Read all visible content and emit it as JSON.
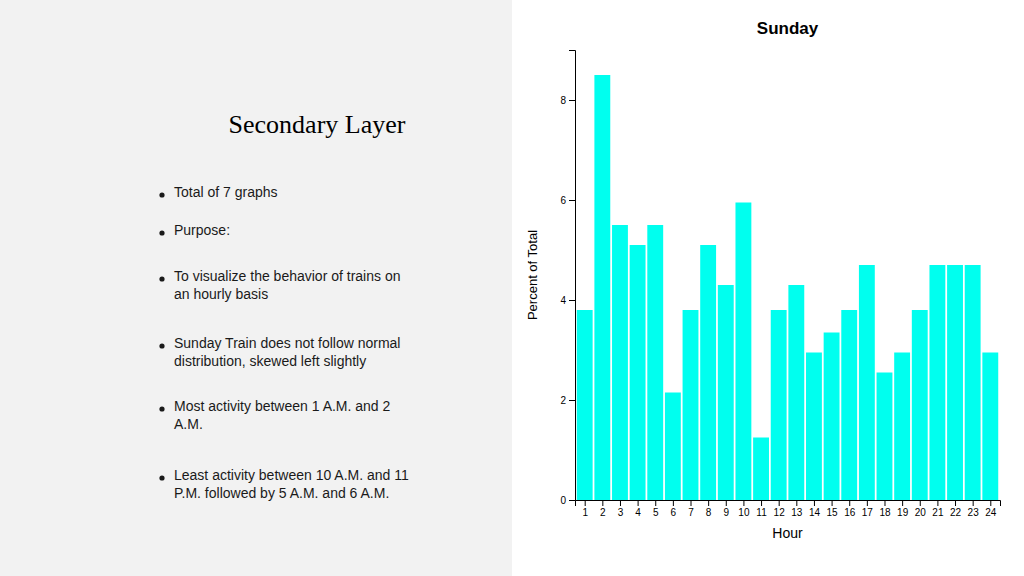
{
  "chart_data": {
    "type": "bar",
    "title": "Sunday",
    "xlabel": "Hour",
    "ylabel": "Percent of Total",
    "x": [
      1,
      2,
      3,
      4,
      5,
      6,
      7,
      8,
      9,
      10,
      11,
      12,
      13,
      14,
      15,
      16,
      17,
      18,
      19,
      20,
      21,
      22,
      23,
      24
    ],
    "values": [
      3.8,
      8.5,
      5.5,
      5.1,
      5.5,
      2.15,
      3.8,
      5.1,
      4.3,
      5.95,
      1.25,
      3.8,
      4.3,
      2.95,
      3.35,
      3.8,
      4.7,
      2.55,
      2.95,
      3.8,
      4.7,
      4.7,
      4.7,
      2.95
    ],
    "color": "#00FFEF",
    "xlim": [
      0.45,
      24.55
    ],
    "xticks": [
      1,
      2,
      3,
      4,
      5,
      6,
      7,
      8,
      9,
      10,
      11,
      12,
      13,
      14,
      15,
      16,
      17,
      18,
      19,
      20,
      21,
      22,
      23,
      24
    ],
    "ylim": [
      0,
      9
    ],
    "yticks": [
      0,
      2,
      4,
      6,
      8
    ],
    "grid": false,
    "heading": "Secondary Layer",
    "bullets": [
      "Total of 7 graphs",
      "Purpose:",
      "To visualize the behavior of trains on\nan hourly basis",
      "Sunday Train does not follow normal\ndistribution, skewed left slightly",
      "Most activity between 1 A.M. and 2\nA.M.",
      "Least activity between 10 A.M. and 11\nP.M. followed by 5 A.M. and 6 A.M."
    ]
  }
}
